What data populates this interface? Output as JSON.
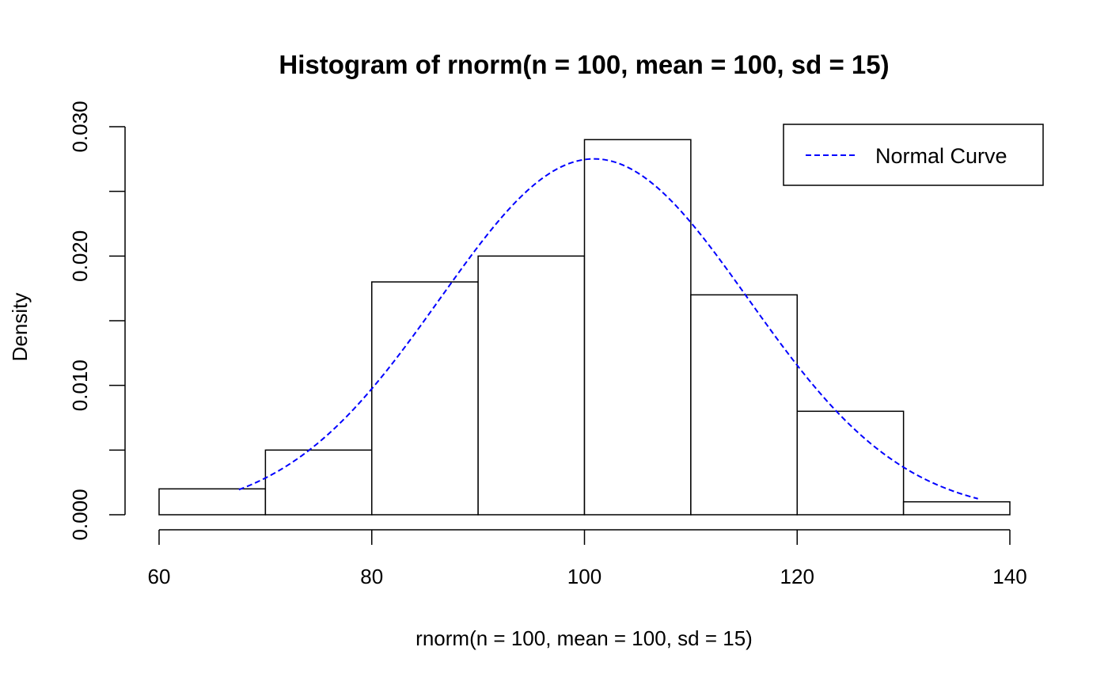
{
  "chart_data": {
    "type": "bar",
    "title": "Histogram of rnorm(n = 100, mean = 100, sd = 15)",
    "xlabel": "rnorm(n = 100, mean = 100, sd = 15)",
    "ylabel": "Density",
    "xlim": [
      60,
      140
    ],
    "ylim": [
      0,
      0.03
    ],
    "x_ticks": [
      60,
      80,
      100,
      120,
      140
    ],
    "x_tick_labels": [
      "60",
      "80",
      "100",
      "120",
      "140"
    ],
    "y_ticks": [
      0,
      0.005,
      0.01,
      0.015,
      0.02,
      0.025,
      0.03
    ],
    "y_tick_labels": [
      "0.000",
      "",
      "0.010",
      "",
      "0.020",
      "",
      "0.030"
    ],
    "bins": [
      {
        "start": 60,
        "end": 70,
        "density": 0.002
      },
      {
        "start": 70,
        "end": 80,
        "density": 0.005
      },
      {
        "start": 80,
        "end": 90,
        "density": 0.018
      },
      {
        "start": 90,
        "end": 100,
        "density": 0.02
      },
      {
        "start": 100,
        "end": 110,
        "density": 0.029
      },
      {
        "start": 110,
        "end": 120,
        "density": 0.017
      },
      {
        "start": 120,
        "end": 130,
        "density": 0.008
      },
      {
        "start": 130,
        "end": 140,
        "density": 0.001
      }
    ],
    "curve": {
      "name": "Normal Curve",
      "mean": 100.9,
      "sd": 14.5,
      "x_range": [
        67.5,
        137
      ],
      "color": "#0000ff",
      "style": "dashed"
    },
    "legend": {
      "placement": "top-right",
      "entries": [
        "Normal Curve"
      ]
    },
    "grid": false,
    "bar_fill": "#ffffff",
    "bar_stroke": "#000000"
  }
}
